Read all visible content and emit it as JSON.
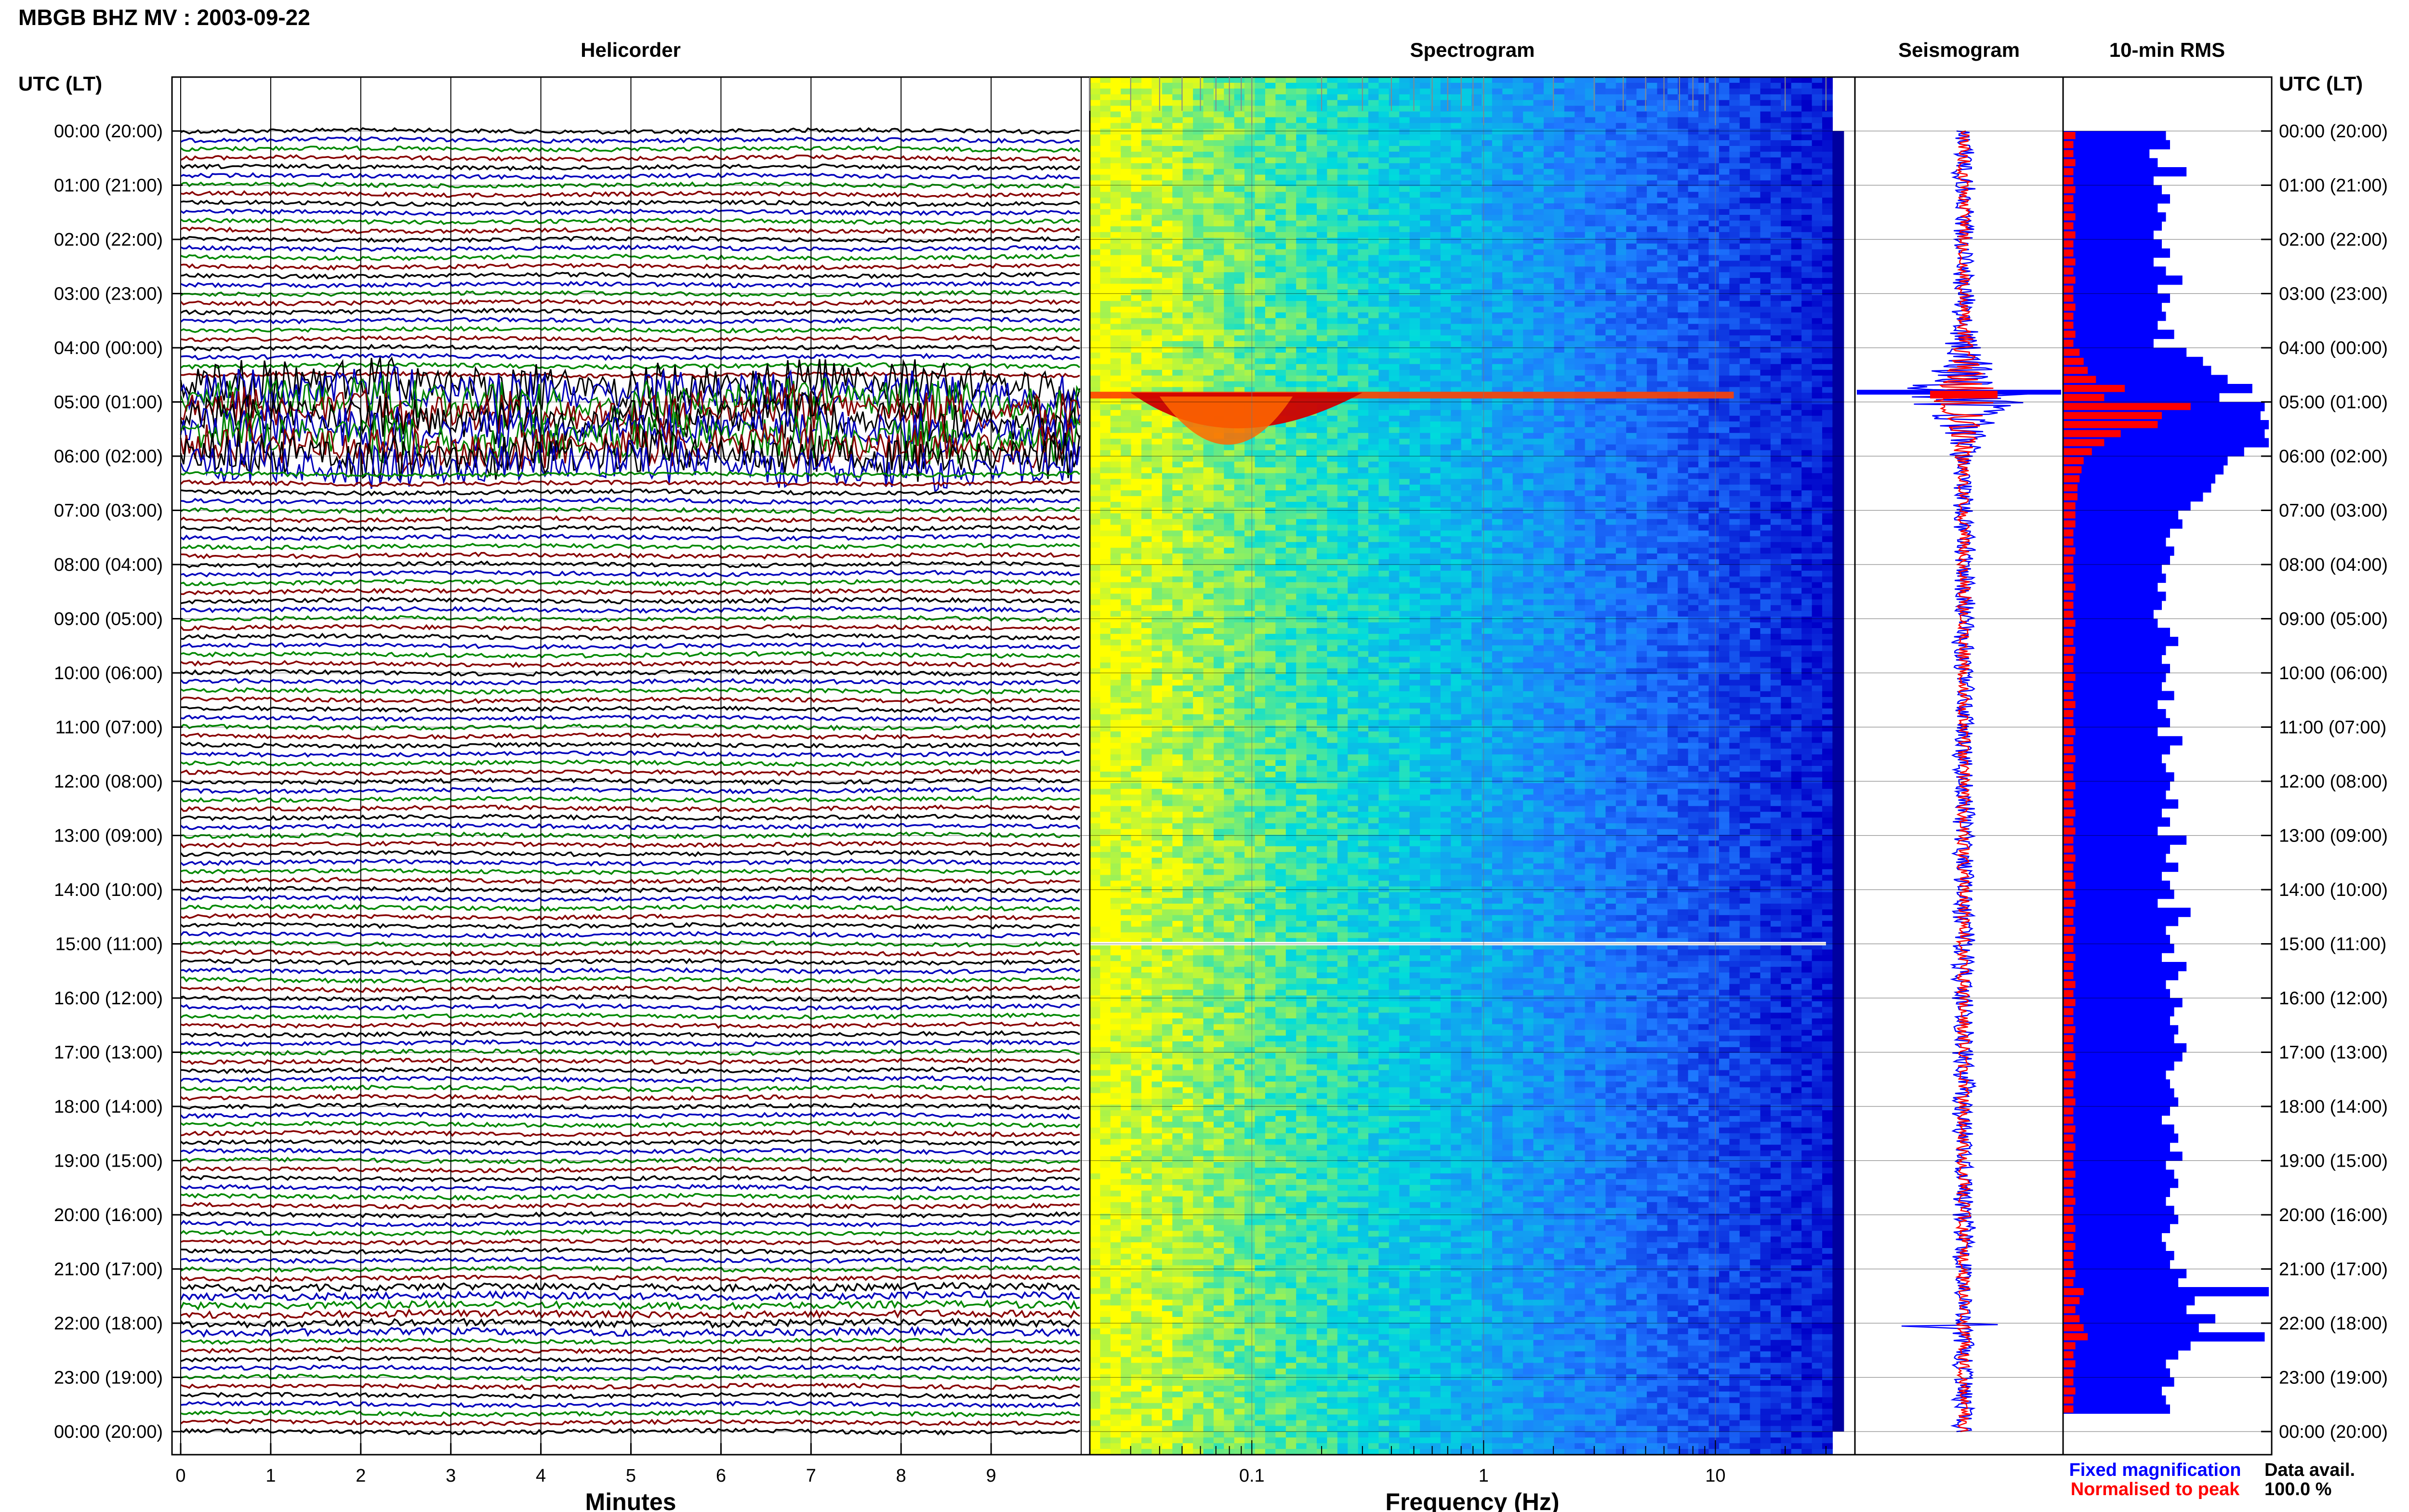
{
  "header": {
    "title": "MBGB BHZ MV : 2003-09-22",
    "left_axis_title": "UTC (LT)",
    "right_axis_title": "UTC (LT)"
  },
  "panels": {
    "helicorder": "Helicorder",
    "spectrogram": "Spectrogram",
    "seismogram": "Seismogram",
    "rms": "10-min RMS"
  },
  "legend": {
    "fixed": "Fixed magnification",
    "normalised": "Normalised to peak",
    "fixed_color": "#0000ff",
    "normalised_color": "#ff0000"
  },
  "data_avail": {
    "label": "Data avail.",
    "value": "100.0 %"
  },
  "chart_data": [
    {
      "type": "line",
      "panel": "Helicorder",
      "xlabel": "Minutes",
      "x_ticks": [
        "0",
        "1",
        "2",
        "3",
        "4",
        "5",
        "6",
        "7",
        "8",
        "9"
      ],
      "xlim": [
        0,
        10
      ],
      "y_ticks": [
        "00:00 (20:00)",
        "01:00 (21:00)",
        "02:00 (22:00)",
        "03:00 (23:00)",
        "04:00 (00:00)",
        "05:00 (01:00)",
        "06:00 (02:00)",
        "07:00 (03:00)",
        "08:00 (04:00)",
        "09:00 (05:00)",
        "10:00 (06:00)",
        "11:00 (07:00)",
        "12:00 (08:00)",
        "13:00 (09:00)",
        "14:00 (10:00)",
        "15:00 (11:00)",
        "16:00 (12:00)",
        "17:00 (13:00)",
        "18:00 (14:00)",
        "19:00 (15:00)",
        "20:00 (16:00)",
        "21:00 (17:00)",
        "22:00 (18:00)",
        "23:00 (19:00)",
        "00:00 (20:00)"
      ],
      "trace_colors": [
        "#000000",
        "#0000bb",
        "#008800",
        "#880000"
      ],
      "traces_per_hour": 6,
      "event_hours": [
        4.6,
        6.2
      ],
      "event_hour_secondary": [
        21.2,
        22.2
      ]
    },
    {
      "type": "heatmap",
      "panel": "Spectrogram",
      "xlabel": "Frequency (Hz)",
      "x_scale": "log",
      "xlim": [
        0.02,
        40
      ],
      "x_ticks": [
        "0.1",
        "1",
        "10"
      ],
      "x_tick_values": [
        0.1,
        1,
        10
      ],
      "ylim_hours": [
        0,
        24
      ],
      "colormap": [
        "#ffff00",
        "#00dcdc",
        "#1e78ff",
        "#0000c8"
      ],
      "event_peak_hour": 4.9,
      "event_peak_hz": 0.08,
      "gap_hour": 15.0
    },
    {
      "type": "line",
      "panel": "Seismogram",
      "series": [
        {
          "name": "Fixed magnification",
          "color": "#0000ff"
        },
        {
          "name": "Normalised to peak",
          "color": "#ff0000"
        }
      ],
      "event_hour": 4.9
    },
    {
      "type": "bar",
      "panel": "10-min RMS",
      "orientation": "horizontal",
      "bins_per_hour": 6,
      "series": [
        {
          "name": "Fixed magnification",
          "color": "#0000ff"
        },
        {
          "name": "Normalised to peak",
          "color": "#ff0000"
        }
      ],
      "rms_fixed_fraction": [
        0.5,
        0.52,
        0.42,
        0.46,
        0.6,
        0.44,
        0.48,
        0.52,
        0.46,
        0.5,
        0.48,
        0.44,
        0.48,
        0.52,
        0.44,
        0.5,
        0.58,
        0.46,
        0.52,
        0.48,
        0.5,
        0.46,
        0.54,
        0.44,
        0.6,
        0.68,
        0.72,
        0.8,
        0.92,
        0.76,
        0.98,
        0.96,
        1.0,
        0.98,
        1.0,
        0.88,
        0.8,
        0.78,
        0.74,
        0.72,
        0.68,
        0.62,
        0.56,
        0.58,
        0.52,
        0.5,
        0.54,
        0.52,
        0.48,
        0.5,
        0.46,
        0.5,
        0.48,
        0.44,
        0.46,
        0.52,
        0.56,
        0.5,
        0.48,
        0.52,
        0.5,
        0.48,
        0.54,
        0.46,
        0.5,
        0.52,
        0.46,
        0.58,
        0.52,
        0.48,
        0.5,
        0.54,
        0.52,
        0.5,
        0.56,
        0.48,
        0.52,
        0.46,
        0.6,
        0.52,
        0.5,
        0.56,
        0.48,
        0.52,
        0.54,
        0.46,
        0.62,
        0.56,
        0.5,
        0.52,
        0.54,
        0.48,
        0.6,
        0.56,
        0.5,
        0.52,
        0.58,
        0.54,
        0.52,
        0.56,
        0.54,
        0.6,
        0.58,
        0.54,
        0.5,
        0.52,
        0.54,
        0.56,
        0.52,
        0.48,
        0.54,
        0.56,
        0.52,
        0.58,
        0.5,
        0.54,
        0.56,
        0.52,
        0.5,
        0.54,
        0.56,
        0.52,
        0.48,
        0.5,
        0.54,
        0.52,
        0.6,
        0.56,
        1.0,
        0.64,
        0.6,
        0.74,
        0.66,
        0.98,
        0.62,
        0.56,
        0.5,
        0.52,
        0.54,
        0.48,
        0.5,
        0.52
      ],
      "rms_normalised_fraction": [
        0.06,
        0.05,
        0.05,
        0.06,
        0.05,
        0.05,
        0.06,
        0.05,
        0.05,
        0.06,
        0.05,
        0.06,
        0.05,
        0.05,
        0.06,
        0.05,
        0.06,
        0.05,
        0.05,
        0.06,
        0.05,
        0.05,
        0.06,
        0.05,
        0.08,
        0.1,
        0.12,
        0.16,
        0.3,
        0.2,
        0.62,
        0.48,
        0.46,
        0.28,
        0.2,
        0.14,
        0.1,
        0.09,
        0.08,
        0.07,
        0.07,
        0.06,
        0.06,
        0.06,
        0.05,
        0.05,
        0.06,
        0.05,
        0.05,
        0.05,
        0.06,
        0.05,
        0.05,
        0.05,
        0.06,
        0.05,
        0.05,
        0.06,
        0.05,
        0.05,
        0.06,
        0.05,
        0.05,
        0.06,
        0.05,
        0.05,
        0.06,
        0.05,
        0.05,
        0.06,
        0.05,
        0.05,
        0.06,
        0.05,
        0.05,
        0.06,
        0.05,
        0.06,
        0.05,
        0.05,
        0.06,
        0.05,
        0.05,
        0.06,
        0.05,
        0.06,
        0.05,
        0.05,
        0.06,
        0.05,
        0.05,
        0.06,
        0.05,
        0.05,
        0.06,
        0.05,
        0.06,
        0.05,
        0.05,
        0.06,
        0.05,
        0.05,
        0.06,
        0.05,
        0.06,
        0.05,
        0.05,
        0.06,
        0.05,
        0.05,
        0.06,
        0.05,
        0.06,
        0.05,
        0.05,
        0.06,
        0.05,
        0.05,
        0.06,
        0.05,
        0.05,
        0.06,
        0.05,
        0.06,
        0.05,
        0.05,
        0.06,
        0.05,
        0.1,
        0.08,
        0.06,
        0.08,
        0.1,
        0.12,
        0.06,
        0.05,
        0.06,
        0.05,
        0.05,
        0.06,
        0.05,
        0.05
      ]
    }
  ]
}
